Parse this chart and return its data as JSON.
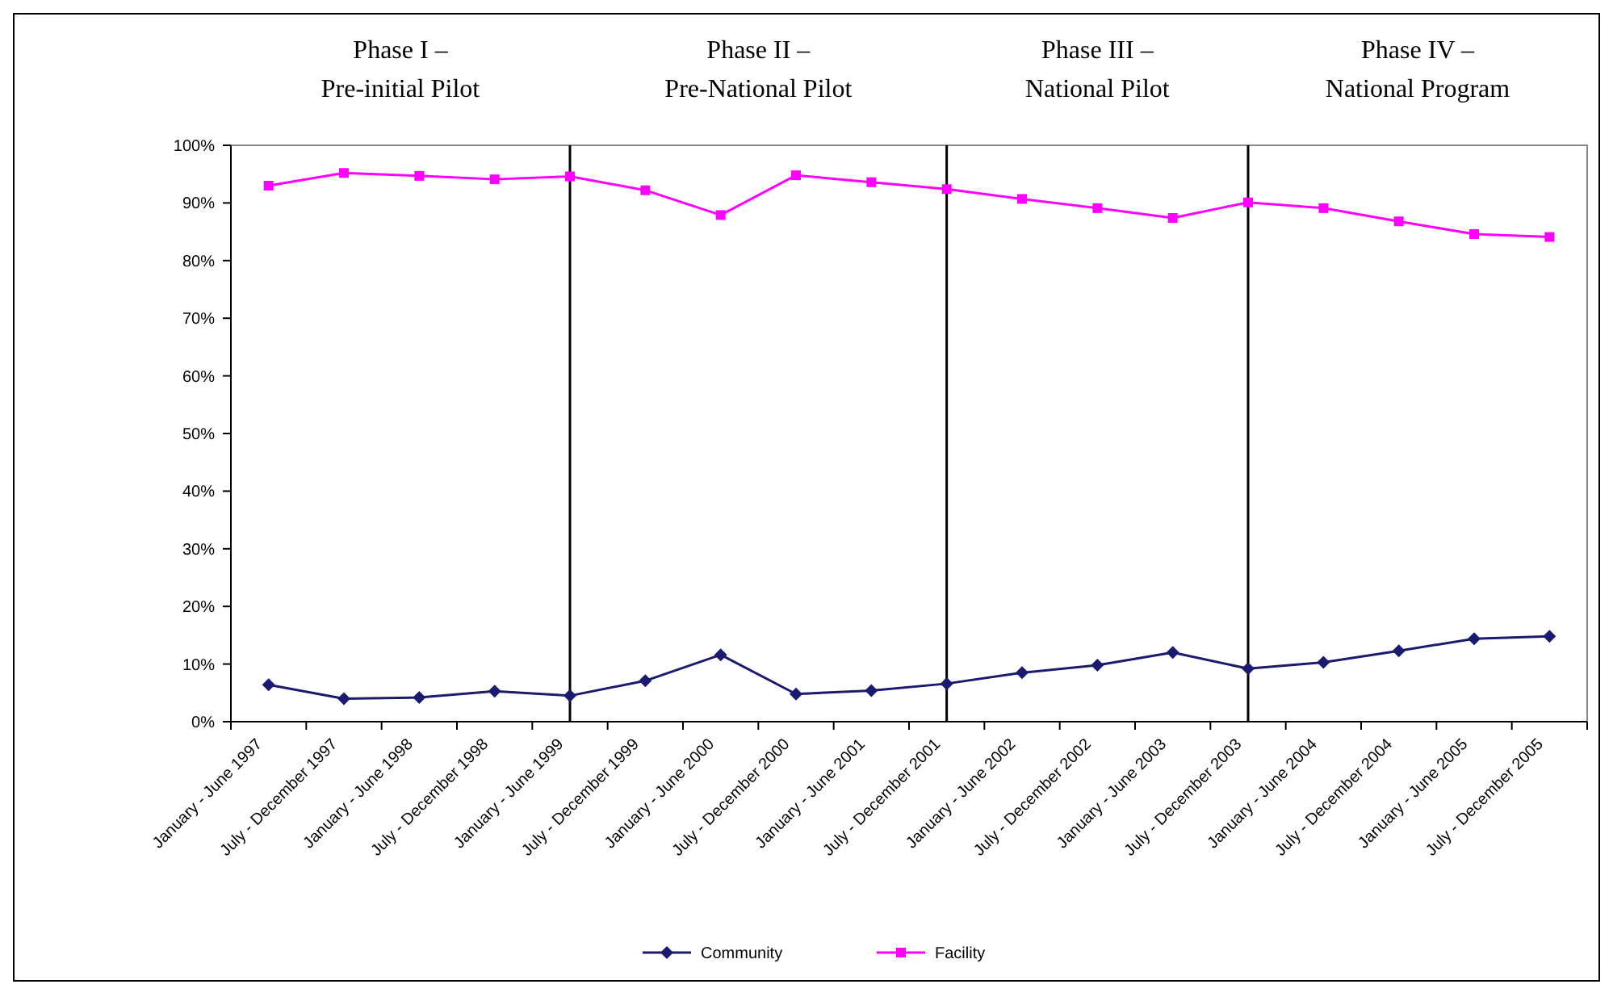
{
  "chart_data": {
    "type": "line",
    "categories": [
      "January - June 1997",
      "July - December 1997",
      "January - June 1998",
      "July - December 1998",
      "January - June 1999",
      "July - December 1999",
      "January - June 2000",
      "July - December 2000",
      "January - June 2001",
      "July - December 2001",
      "January - June 2002",
      "July - December 2002",
      "January - June 2003",
      "July - December 2003",
      "January - June 2004",
      "July - December 2004",
      "January - June 2005",
      "July - December 2005"
    ],
    "series": [
      {
        "name": "Community",
        "color": "#1a1a6e",
        "marker": "diamond",
        "values": [
          6.4,
          4.0,
          4.2,
          5.3,
          4.5,
          7.1,
          11.6,
          4.8,
          5.4,
          6.6,
          8.5,
          9.8,
          12.0,
          9.2,
          10.3,
          12.3,
          14.4,
          14.8
        ]
      },
      {
        "name": "Facility",
        "color": "#ff00ff",
        "marker": "square",
        "values": [
          93.0,
          95.2,
          94.7,
          94.1,
          94.6,
          92.2,
          87.9,
          94.8,
          93.6,
          92.4,
          90.7,
          89.1,
          87.4,
          90.1,
          89.1,
          86.8,
          84.6,
          84.1
        ]
      }
    ],
    "ylim": [
      0,
      100
    ],
    "yticks": [
      {
        "value": 0,
        "label": "0%"
      },
      {
        "value": 10,
        "label": "10%"
      },
      {
        "value": 20,
        "label": "20%"
      },
      {
        "value": 30,
        "label": "30%"
      },
      {
        "value": 40,
        "label": "40%"
      },
      {
        "value": 50,
        "label": "50%"
      },
      {
        "value": 60,
        "label": "60%"
      },
      {
        "value": 70,
        "label": "70%"
      },
      {
        "value": 80,
        "label": "80%"
      },
      {
        "value": 90,
        "label": "90%"
      },
      {
        "value": 100,
        "label": "100%"
      }
    ],
    "ref_lines": [
      {
        "axis": "x",
        "value": "January - June 1999",
        "color": "#000000"
      },
      {
        "axis": "x",
        "value": "July - December 2001",
        "color": "#000000"
      },
      {
        "axis": "x",
        "value": "July - December 2003",
        "color": "#000000"
      }
    ],
    "annotations": [
      "Phase I –\nPre-initial Pilot",
      "Phase II –\nPre-National Pilot",
      "Phase III –\nNational Pilot",
      "Phase IV –\nNational Program"
    ],
    "grid": false,
    "legend": "bottom"
  }
}
